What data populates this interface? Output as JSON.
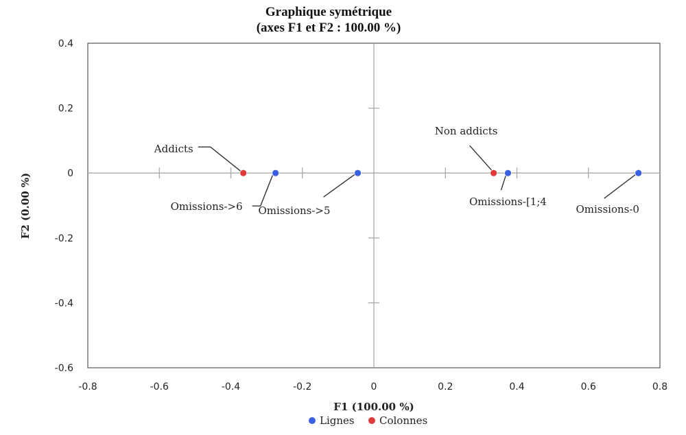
{
  "chart_data": {
    "type": "scatter",
    "title": "Graphique symétrique",
    "subtitle": "(axes F1 et F2 : 100.00 %)",
    "xlabel": "F1 (100.00 %)",
    "ylabel": "F2 (0.00 %)",
    "xlim": [
      -0.8,
      0.8
    ],
    "ylim": [
      -0.6,
      0.4
    ],
    "xticks": [
      "-0.8",
      "-0.6",
      "-0.4",
      "-0.2",
      "0",
      "0.2",
      "0.4",
      "0.6",
      "0.8"
    ],
    "yticks": [
      "0.4",
      "0.2",
      "0",
      "-0.2",
      "-0.4",
      "-0.6"
    ],
    "grid": false,
    "legend_position": "bottom-center",
    "series": [
      {
        "name": "Lignes",
        "color": "#3a5fe0",
        "points": [
          {
            "label": "Omissions->6",
            "x": -0.275,
            "y": 0
          },
          {
            "label": "Omissions->5",
            "x": -0.045,
            "y": 0
          },
          {
            "label": "Omissions-[1;4",
            "x": 0.375,
            "y": 0
          },
          {
            "label": "Omissions-0",
            "x": 0.74,
            "y": 0
          }
        ]
      },
      {
        "name": "Colonnes",
        "color": "#e03a3a",
        "points": [
          {
            "label": "Addicts",
            "x": -0.365,
            "y": 0
          },
          {
            "label": "Non addicts",
            "x": 0.335,
            "y": 0
          }
        ]
      }
    ]
  }
}
